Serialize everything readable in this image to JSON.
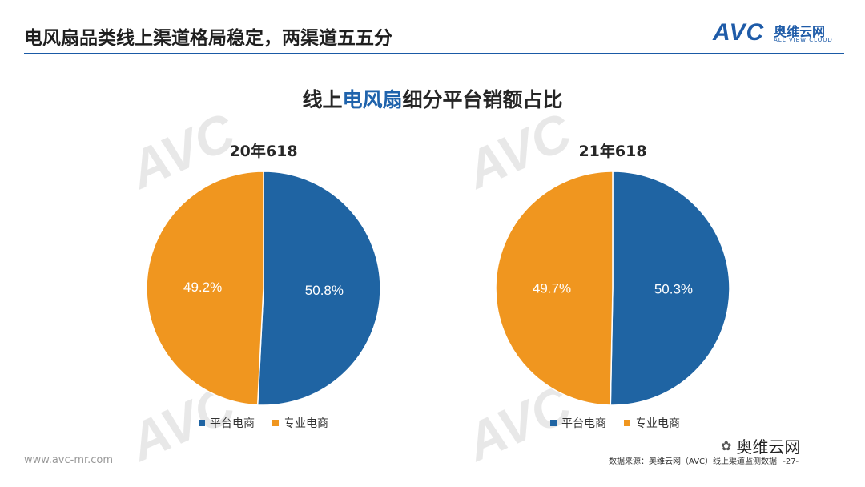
{
  "header": {
    "title": "电风扇品类线上渠道格局稳定，两渠道五五分",
    "logo_mark": "AVC",
    "logo_cn": "奥维云网",
    "logo_en": "ALL VIEW CLOUD"
  },
  "chart_title": {
    "prefix": "线上",
    "highlight": "电风扇",
    "suffix": "细分平台销额占比"
  },
  "colors": {
    "platform": "#1f64a3",
    "specialty": "#f0961f",
    "accent": "#1a5aa6"
  },
  "chart_data": [
    {
      "type": "pie",
      "title": "20年618",
      "slices": [
        {
          "name": "平台电商",
          "value": 50.8,
          "label": "50.8%"
        },
        {
          "name": "专业电商",
          "value": 49.2,
          "label": "49.2%"
        }
      ],
      "legend": [
        "平台电商",
        "专业电商"
      ]
    },
    {
      "type": "pie",
      "title": "21年618",
      "slices": [
        {
          "name": "平台电商",
          "value": 50.3,
          "label": "50.3%"
        },
        {
          "name": "专业电商",
          "value": 49.7,
          "label": "49.7%"
        }
      ],
      "legend": [
        "平台电商",
        "专业电商"
      ]
    }
  ],
  "footer": {
    "url": "www.avc-mr.com",
    "source": "数据来源：奥维云网（AVC）线上渠道监测数据",
    "page": "-27-",
    "wechat": "奥维云网"
  }
}
